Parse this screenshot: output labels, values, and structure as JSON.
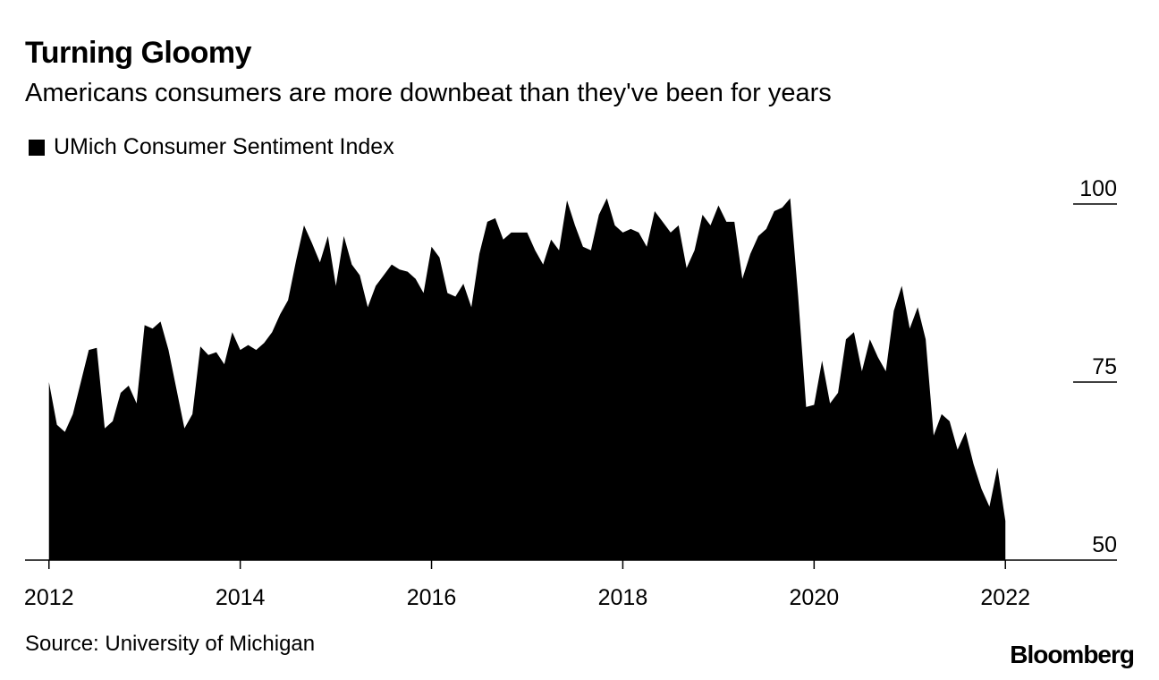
{
  "title": "Turning Gloomy",
  "subtitle": "Americans consumers are more downbeat than they've been for years",
  "legend": {
    "label": "UMich Consumer Sentiment Index",
    "color": "#000000"
  },
  "source": "Source: University of Michigan",
  "brand": "Bloomberg",
  "chart_data": {
    "type": "area",
    "title": "Turning Gloomy",
    "subtitle": "Americans consumers are more downbeat than they've been for years",
    "series": [
      {
        "name": "UMich Consumer Sentiment Index",
        "color": "#000000",
        "start": "2012-01",
        "frequency": "monthly",
        "values": [
          75.0,
          69.0,
          68.0,
          70.5,
          75.0,
          79.5,
          79.8,
          68.5,
          69.5,
          73.5,
          74.5,
          72.0,
          83.0,
          82.5,
          83.5,
          79.5,
          74.0,
          68.5,
          70.5,
          80.0,
          78.8,
          79.2,
          77.5,
          82.0,
          79.5,
          80.2,
          79.5,
          80.5,
          82.0,
          84.5,
          86.5,
          92.0,
          97.0,
          94.5,
          91.8,
          95.5,
          88.5,
          95.5,
          91.5,
          90.0,
          85.5,
          88.5,
          90.0,
          91.5,
          90.8,
          90.5,
          89.5,
          87.5,
          94.0,
          92.5,
          87.5,
          87.0,
          88.8,
          85.5,
          93.0,
          97.5,
          98.0,
          95.0,
          96.0,
          96.0,
          96.0,
          93.5,
          91.5,
          95.0,
          93.5,
          100.5,
          97.0,
          94.0,
          93.5,
          98.5,
          100.8,
          97.0,
          96.0,
          96.5,
          96.0,
          94.0,
          99.0,
          97.5,
          96.0,
          97.0,
          91.0,
          93.5,
          98.5,
          97.0,
          99.8,
          97.5,
          97.5,
          89.5,
          93.0,
          95.5,
          96.5,
          99.0,
          99.5,
          100.8,
          87.0,
          71.5,
          71.8,
          78.0,
          72.0,
          73.5,
          81.0,
          82.0,
          76.5,
          81.0,
          78.5,
          76.5,
          85.0,
          88.5,
          82.5,
          85.5,
          81.0,
          67.5,
          70.5,
          69.5,
          65.5,
          68.0,
          63.5,
          60.0,
          57.5,
          63.0,
          55.5
        ]
      }
    ],
    "x_ticks": [
      "2012",
      "2014",
      "2016",
      "2018",
      "2020",
      "2022"
    ],
    "xlim": [
      "2011-10",
      "2023-03"
    ],
    "y_ticks": [
      100,
      75,
      50
    ],
    "ylim": [
      50,
      100
    ],
    "xlabel": "",
    "ylabel": "",
    "grid": false,
    "legend_position": "top-left"
  }
}
